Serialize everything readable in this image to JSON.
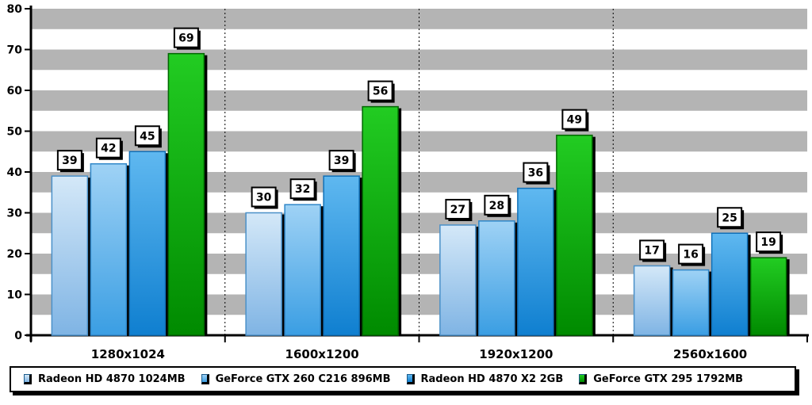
{
  "chart_data": {
    "type": "bar",
    "categories": [
      "1280x1024",
      "1600x1200",
      "1920x1200",
      "2560x1600"
    ],
    "series": [
      {
        "name": "Radeon HD 4870 1024MB",
        "values": [
          39,
          30,
          27,
          17
        ],
        "color_top": "#d4e8f8",
        "color_bottom": "#7fb4e4",
        "border": "#4a90c8"
      },
      {
        "name": "GeForce GTX 260 C216 896MB",
        "values": [
          42,
          32,
          28,
          16
        ],
        "color_top": "#9fd2f5",
        "color_bottom": "#3a9ee3",
        "border": "#2f86c8"
      },
      {
        "name": "Radeon HD 4870 X2 2GB",
        "values": [
          45,
          39,
          36,
          25
        ],
        "color_top": "#5fb8f0",
        "color_bottom": "#0f7fd0",
        "border": "#1070b8"
      },
      {
        "name": "GeForce GTX 295 1792MB",
        "values": [
          69,
          56,
          49,
          19
        ],
        "color_top": "#22cc22",
        "color_bottom": "#008a00",
        "border": "#006600"
      }
    ],
    "yticks": [
      "0",
      "10",
      "20",
      "30",
      "40",
      "50",
      "60",
      "70",
      "80"
    ],
    "ylim": [
      0,
      80
    ],
    "band_color": "#b4b4b4",
    "title": "",
    "xlabel": "",
    "ylabel": ""
  }
}
